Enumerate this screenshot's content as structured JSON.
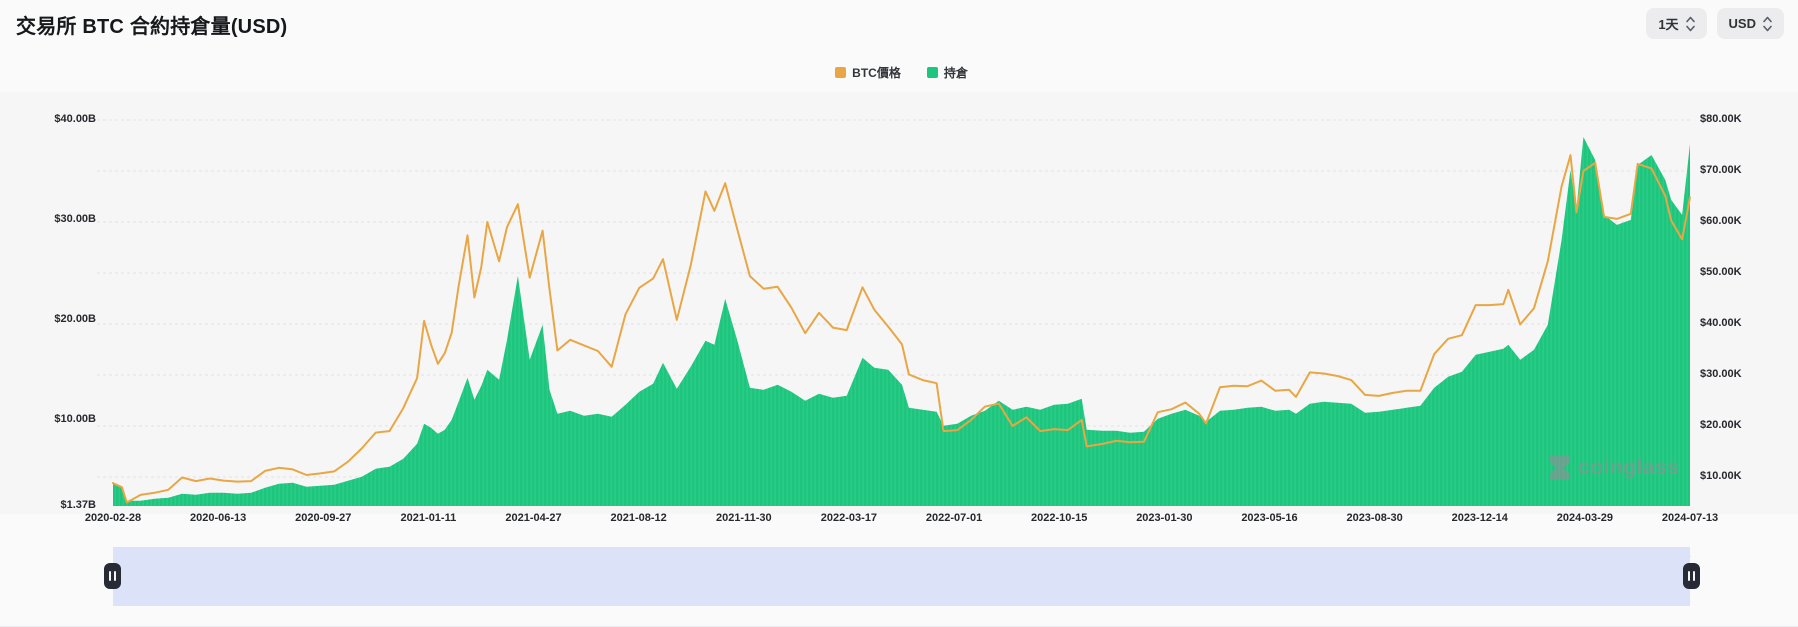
{
  "header": {
    "title": "交易所 BTC 合約持倉量(USD)",
    "interval_value": "1天",
    "currency_value": "USD"
  },
  "watermark": "coinglass",
  "chart_data": {
    "type": "area+line",
    "title": "交易所 BTC 合約持倉量(USD)",
    "legend_position": "top-center",
    "grid": "dashed-horizontal",
    "x_ticks": [
      "2020-02-28",
      "2020-06-13",
      "2020-09-27",
      "2021-01-11",
      "2021-04-27",
      "2021-08-12",
      "2021-11-30",
      "2022-03-17",
      "2022-07-01",
      "2022-10-15",
      "2023-01-30",
      "2023-05-16",
      "2023-08-30",
      "2023-12-14",
      "2024-03-29",
      "2024-07-13"
    ],
    "y_axis_left": {
      "unit": "USD billions",
      "ticks": [
        {
          "label": "$40.00B",
          "value": 40
        },
        {
          "label": "$30.00B",
          "value": 30
        },
        {
          "label": "$20.00B",
          "value": 20
        },
        {
          "label": "$10.00B",
          "value": 10
        },
        {
          "label": "$1.37B",
          "value": 1.37
        }
      ]
    },
    "y_axis_right": {
      "unit": "USD thousands",
      "ticks": [
        {
          "label": "$80.00K",
          "value": 80
        },
        {
          "label": "$70.00K",
          "value": 70
        },
        {
          "label": "$60.00K",
          "value": 60
        },
        {
          "label": "$50.00K",
          "value": 50
        },
        {
          "label": "$40.00K",
          "value": 40
        },
        {
          "label": "$30.00K",
          "value": 30
        },
        {
          "label": "$20.00K",
          "value": 20
        },
        {
          "label": "$10.00K",
          "value": 10
        }
      ]
    },
    "dates": [
      "2020-02-28",
      "2020-03-08",
      "2020-03-13",
      "2020-03-27",
      "2020-04-10",
      "2020-04-24",
      "2020-05-08",
      "2020-05-22",
      "2020-06-05",
      "2020-06-19",
      "2020-07-03",
      "2020-07-17",
      "2020-07-31",
      "2020-08-14",
      "2020-08-28",
      "2020-09-11",
      "2020-09-25",
      "2020-10-09",
      "2020-10-23",
      "2020-11-06",
      "2020-11-20",
      "2020-12-04",
      "2020-12-18",
      "2021-01-01",
      "2021-01-08",
      "2021-01-15",
      "2021-01-22",
      "2021-01-29",
      "2021-02-05",
      "2021-02-12",
      "2021-02-21",
      "2021-02-28",
      "2021-03-07",
      "2021-03-13",
      "2021-03-25",
      "2021-04-02",
      "2021-04-13",
      "2021-04-25",
      "2021-05-08",
      "2021-05-15",
      "2021-05-23",
      "2021-06-05",
      "2021-06-19",
      "2021-07-03",
      "2021-07-17",
      "2021-07-31",
      "2021-08-14",
      "2021-08-28",
      "2021-09-07",
      "2021-09-21",
      "2021-10-05",
      "2021-10-20",
      "2021-10-29",
      "2021-11-09",
      "2021-11-21",
      "2021-12-04",
      "2021-12-18",
      "2022-01-01",
      "2022-01-15",
      "2022-01-29",
      "2022-02-12",
      "2022-02-26",
      "2022-03-12",
      "2022-03-28",
      "2022-04-09",
      "2022-04-23",
      "2022-05-07",
      "2022-05-14",
      "2022-05-28",
      "2022-06-11",
      "2022-06-18",
      "2022-07-02",
      "2022-07-16",
      "2022-07-30",
      "2022-08-13",
      "2022-08-27",
      "2022-09-10",
      "2022-09-24",
      "2022-10-08",
      "2022-10-22",
      "2022-11-05",
      "2022-11-10",
      "2022-11-26",
      "2022-12-10",
      "2022-12-24",
      "2023-01-07",
      "2023-01-21",
      "2023-02-04",
      "2023-02-18",
      "2023-03-04",
      "2023-03-11",
      "2023-03-25",
      "2023-04-08",
      "2023-04-22",
      "2023-05-06",
      "2023-05-20",
      "2023-06-03",
      "2023-06-10",
      "2023-06-24",
      "2023-07-08",
      "2023-07-22",
      "2023-08-05",
      "2023-08-19",
      "2023-09-02",
      "2023-09-16",
      "2023-09-30",
      "2023-10-14",
      "2023-10-28",
      "2023-11-11",
      "2023-11-25",
      "2023-12-09",
      "2023-12-23",
      "2024-01-06",
      "2024-01-11",
      "2024-01-23",
      "2024-02-06",
      "2024-02-20",
      "2024-03-05",
      "2024-03-14",
      "2024-03-20",
      "2024-03-27",
      "2024-04-08",
      "2024-04-17",
      "2024-04-30",
      "2024-05-14",
      "2024-05-21",
      "2024-06-04",
      "2024-06-18",
      "2024-06-24",
      "2024-07-05",
      "2024-07-13"
    ],
    "series": [
      {
        "name": "BTC價格",
        "type": "line",
        "axis": "right",
        "color": "#E9A644",
        "unit": "K USD",
        "values": [
          8.8,
          8.0,
          5.0,
          6.5,
          6.9,
          7.5,
          9.9,
          9.2,
          9.7,
          9.3,
          9.1,
          9.2,
          11.2,
          11.8,
          11.5,
          10.4,
          10.7,
          11.1,
          13.0,
          15.6,
          18.7,
          19.0,
          23.5,
          29.4,
          40.6,
          36.0,
          32.2,
          34.3,
          38.3,
          47.4,
          57.4,
          45.2,
          51.2,
          60.0,
          52.3,
          59.0,
          63.5,
          49.1,
          58.3,
          46.8,
          34.8,
          36.9,
          35.8,
          34.7,
          31.6,
          41.9,
          47.1,
          48.9,
          52.7,
          40.8,
          51.5,
          66.0,
          62.2,
          67.6,
          58.7,
          49.4,
          46.9,
          47.3,
          43.2,
          38.2,
          42.2,
          39.3,
          38.8,
          47.2,
          42.8,
          39.5,
          36.0,
          30.1,
          29.0,
          28.4,
          19.0,
          19.2,
          21.2,
          23.8,
          24.4,
          20.0,
          21.7,
          19.0,
          19.4,
          19.2,
          21.2,
          16.0,
          16.5,
          17.1,
          16.8,
          16.9,
          22.7,
          23.3,
          24.6,
          22.4,
          20.5,
          27.6,
          27.9,
          27.8,
          28.9,
          26.9,
          27.1,
          25.7,
          30.5,
          30.3,
          29.8,
          29.0,
          26.1,
          25.9,
          26.5,
          26.9,
          26.9,
          34.1,
          37.1,
          37.8,
          43.7,
          43.7,
          43.9,
          46.7,
          39.9,
          43.1,
          52.3,
          67.0,
          73.1,
          61.9,
          70.0,
          71.6,
          61.0,
          60.6,
          61.6,
          71.4,
          70.5,
          65.1,
          60.3,
          56.6,
          64.8
        ]
      },
      {
        "name": "持倉",
        "type": "area",
        "axis": "left",
        "color": "#1EC57D",
        "unit": "B USD",
        "values": [
          3.6,
          3.3,
          1.9,
          1.9,
          2.1,
          2.2,
          2.6,
          2.5,
          2.7,
          2.7,
          2.6,
          2.7,
          3.2,
          3.6,
          3.7,
          3.3,
          3.4,
          3.5,
          3.9,
          4.3,
          5.1,
          5.3,
          6.1,
          7.6,
          9.6,
          9.2,
          8.6,
          9.0,
          10.0,
          11.8,
          14.2,
          12.0,
          13.4,
          15.0,
          14.0,
          18.0,
          24.4,
          16.0,
          19.5,
          13.0,
          10.6,
          10.9,
          10.4,
          10.6,
          10.3,
          11.5,
          12.8,
          13.6,
          15.7,
          13.1,
          15.3,
          17.9,
          17.5,
          22.1,
          18.0,
          13.2,
          13.0,
          13.5,
          12.8,
          11.9,
          12.6,
          12.2,
          12.4,
          16.2,
          15.2,
          15.0,
          13.5,
          11.2,
          11.0,
          10.8,
          9.4,
          9.6,
          10.4,
          10.9,
          11.9,
          11.0,
          11.3,
          11.0,
          11.5,
          11.6,
          12.1,
          9.0,
          8.9,
          8.9,
          8.7,
          8.8,
          10.1,
          10.6,
          11.0,
          10.4,
          9.8,
          10.9,
          11.0,
          11.2,
          11.3,
          10.9,
          11.0,
          10.6,
          11.6,
          11.8,
          11.7,
          11.6,
          10.7,
          10.8,
          11.0,
          11.2,
          11.4,
          13.2,
          14.3,
          14.8,
          16.5,
          16.8,
          17.1,
          17.5,
          16.0,
          17.0,
          19.5,
          28.0,
          35.0,
          31.0,
          38.3,
          36.0,
          30.5,
          29.5,
          30.0,
          35.5,
          36.5,
          34.0,
          32.0,
          30.5,
          37.6
        ]
      }
    ],
    "navigator_series": "持倉"
  }
}
